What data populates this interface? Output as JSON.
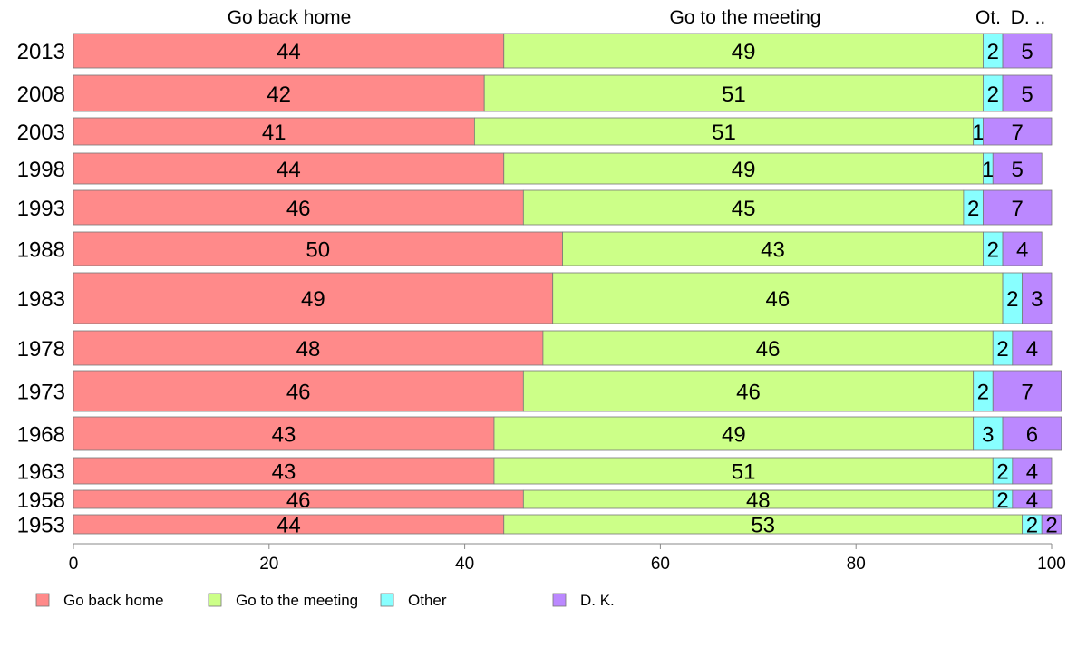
{
  "chart_data": {
    "type": "bar",
    "orientation": "horizontal",
    "stacked": true,
    "categories": [
      "2013",
      "2008",
      "2003",
      "1998",
      "1993",
      "1988",
      "1983",
      "1978",
      "1973",
      "1968",
      "1963",
      "1958",
      "1953"
    ],
    "series": [
      {
        "name": "Go back home",
        "color": "#ff8a8a",
        "values": [
          44,
          42,
          41,
          44,
          46,
          50,
          49,
          48,
          46,
          43,
          43,
          46,
          44
        ]
      },
      {
        "name": "Go to the meeting",
        "color": "#ccff88",
        "values": [
          49,
          51,
          51,
          49,
          45,
          43,
          46,
          46,
          46,
          49,
          51,
          48,
          53
        ]
      },
      {
        "name": "Other",
        "color": "#88ffff",
        "values": [
          2,
          2,
          1,
          1,
          2,
          2,
          2,
          2,
          2,
          3,
          2,
          2,
          2
        ]
      },
      {
        "name": "D. K.",
        "color": "#bb88ff",
        "values": [
          5,
          5,
          7,
          5,
          7,
          4,
          3,
          4,
          7,
          6,
          4,
          4,
          2
        ]
      }
    ],
    "xlim": [
      0,
      100
    ],
    "xticks": [
      "0",
      "20",
      "40",
      "60",
      "80",
      "100"
    ],
    "column_headers": [
      "Go back home",
      "Go to the meeting",
      "Ot.",
      "D. .."
    ],
    "legend_position": "bottom"
  }
}
